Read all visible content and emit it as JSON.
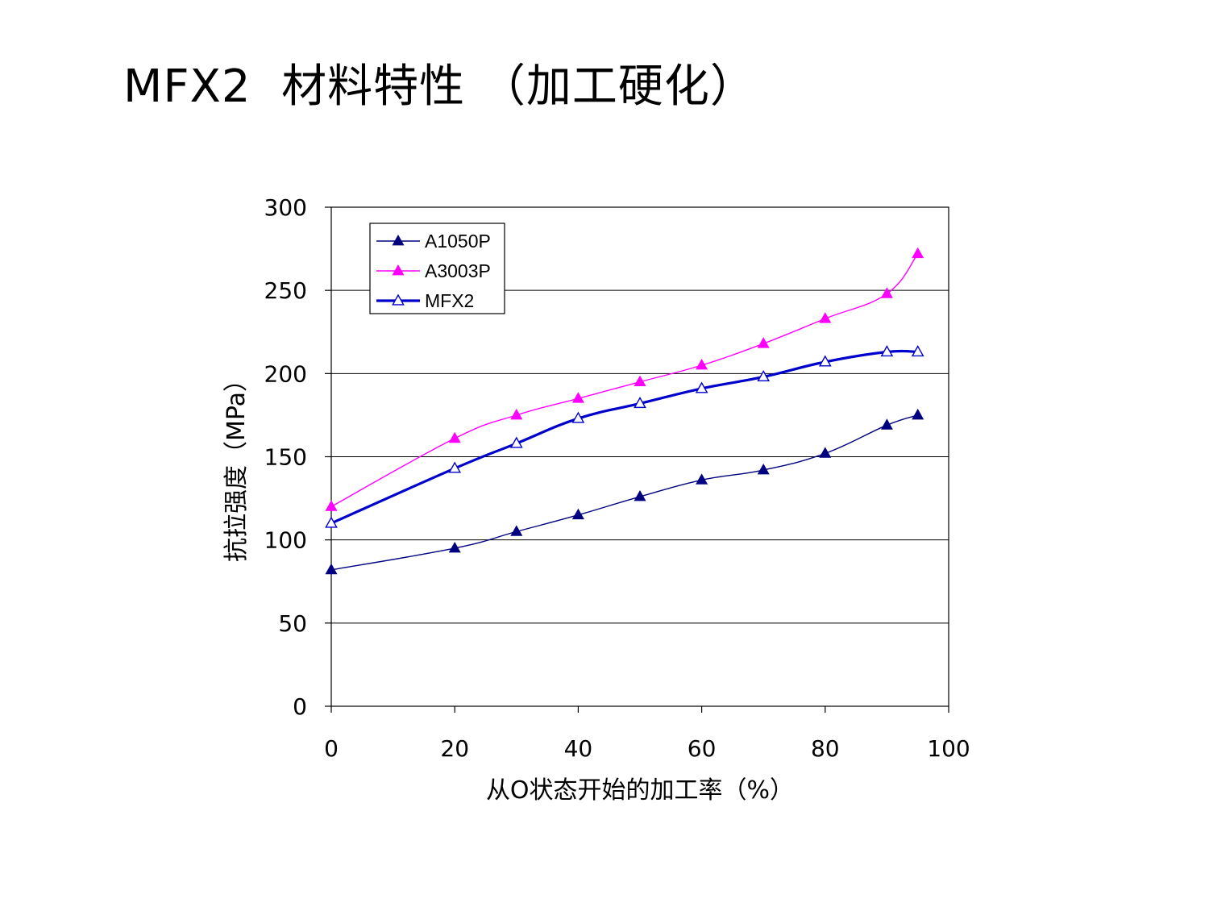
{
  "slide": {
    "title": "MFX2  材料特性 （加工硬化）"
  },
  "chart_data": {
    "type": "line",
    "xlabel": "从O状态开始的加工率（%）",
    "ylabel": "抗拉强度（MPa）",
    "xlim": [
      0,
      100
    ],
    "ylim": [
      0,
      300
    ],
    "xticks": [
      "0",
      "20",
      "40",
      "60",
      "80",
      "100"
    ],
    "yticks": [
      "0",
      "50",
      "100",
      "150",
      "200",
      "250",
      "300"
    ],
    "grid": "horizontal",
    "legend_position": "top-left",
    "series": [
      {
        "name": "A1050P",
        "color": "#000080",
        "marker": "filled-triangle",
        "x": [
          0,
          20,
          30,
          40,
          50,
          60,
          70,
          80,
          90,
          95
        ],
        "y": [
          82,
          95,
          105,
          115,
          126,
          136,
          142,
          152,
          169,
          175
        ]
      },
      {
        "name": "A3003P",
        "color": "#ff00ff",
        "marker": "filled-triangle",
        "x": [
          0,
          20,
          30,
          40,
          50,
          60,
          70,
          80,
          90,
          95
        ],
        "y": [
          120,
          161,
          175,
          185,
          195,
          205,
          218,
          233,
          248,
          272
        ]
      },
      {
        "name": "MFX2",
        "color": "#0000cc",
        "marker": "hollow-triangle",
        "x": [
          0,
          20,
          30,
          40,
          50,
          60,
          70,
          80,
          90,
          95
        ],
        "y": [
          110,
          143,
          158,
          173,
          182,
          191,
          198,
          207,
          213,
          213
        ]
      }
    ]
  }
}
